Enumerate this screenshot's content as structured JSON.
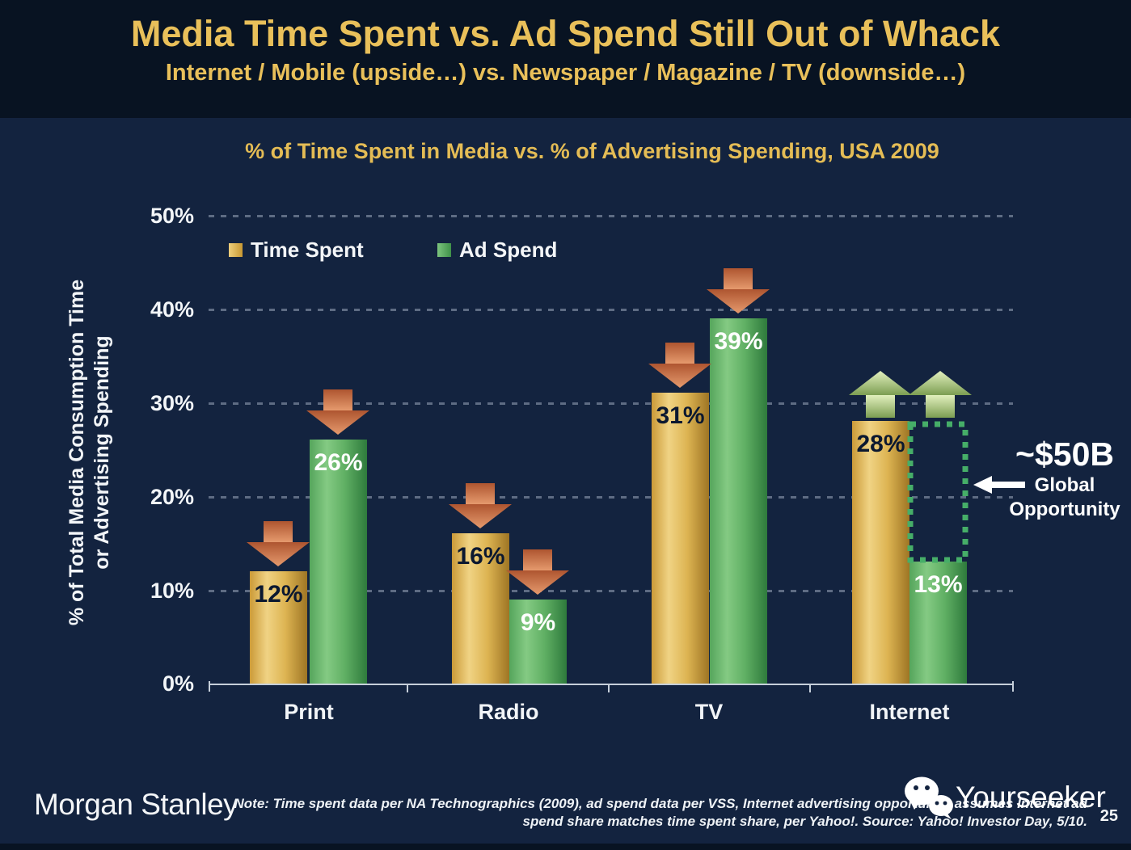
{
  "slide": {
    "title": "Media Time Spent vs. Ad Spend Still Out of Whack",
    "subtitle": "Internet / Mobile (upside…) vs. Newspaper / Magazine / TV (downside…)"
  },
  "chart_data": {
    "type": "bar",
    "title": "% of Time Spent in Media vs. % of Advertising Spending, USA 2009",
    "ylabel_line1": "% of Total Media Consumption Time",
    "ylabel_line2": "or Advertising Spending",
    "categories": [
      "Print",
      "Radio",
      "TV",
      "Internet"
    ],
    "series": [
      {
        "name": "Time Spent",
        "color": "#D9A940",
        "values": [
          12,
          16,
          31,
          28
        ]
      },
      {
        "name": "Ad Spend",
        "color": "#4FA85A",
        "values": [
          26,
          9,
          39,
          13
        ]
      }
    ],
    "ylim": [
      0,
      50
    ],
    "ytick_labels": [
      "50%",
      "40%",
      "30%",
      "20%",
      "10%",
      "0%"
    ],
    "grid": "dashed horizontal lines every 10%",
    "legend_position": "top-left inside plot",
    "annotations": {
      "down_arrows": [
        "Print Time Spent",
        "Print Ad Spend",
        "Radio Time Spent",
        "Radio Ad Spend",
        "TV Time Spent",
        "TV Ad Spend"
      ],
      "up_arrows": [
        "Internet Time Spent",
        "Internet Ad Spend"
      ],
      "opportunity_callout": {
        "value": "~$50B",
        "line2": "Global",
        "line3": "Opportunity"
      }
    }
  },
  "footer": {
    "logo": "Morgan Stanley",
    "note_line1": "Note: Time spent data per NA Technographics (2009), ad spend data per VSS, Internet advertising opportunity assumes Internet ad",
    "note_line2": "spend share matches time spent share, per Yahoo!. Source: Yahoo! Investor Day, 5/10.",
    "watermark": "Yourseeker",
    "page_number": "25"
  },
  "colors": {
    "background": "#13233F",
    "header_band": "#081322",
    "gold_text": "#E9C05A",
    "bar_gold": "#D9A940",
    "bar_green": "#4FA85A",
    "down_arrow": "#C0633B",
    "up_arrow": "#BBD98A",
    "dotted_box": "#46AE68"
  }
}
